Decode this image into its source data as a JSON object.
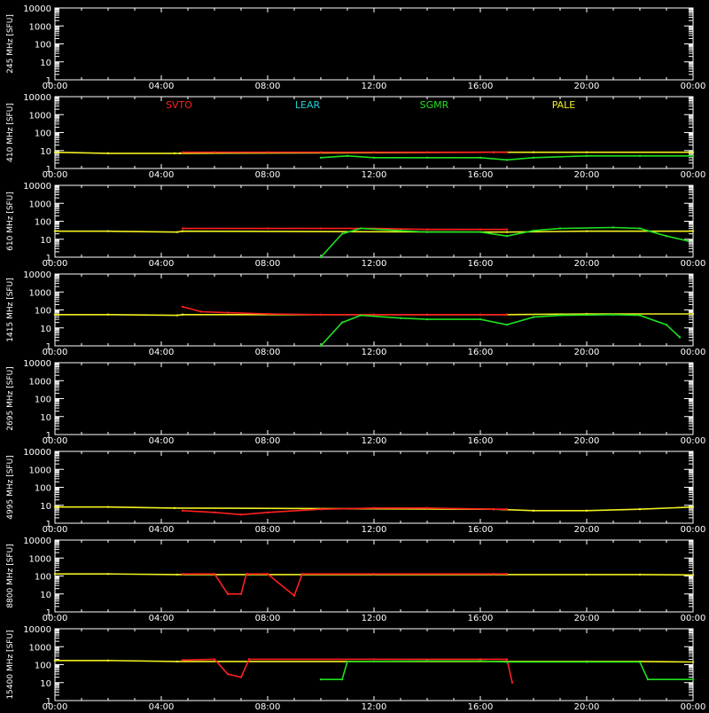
{
  "chart_data": {
    "type": "line",
    "x_ticks": [
      "00:00",
      "04:00",
      "08:00",
      "12:00",
      "16:00",
      "20:00",
      "00:00"
    ],
    "x_range_hours": [
      0,
      24
    ],
    "y_scale": "log",
    "y_ticks": [
      "10000",
      "1000",
      "100",
      "10",
      "1"
    ],
    "ylim": [
      1,
      10000
    ],
    "legend": [
      {
        "name": "SVTO",
        "color": "#ff2020"
      },
      {
        "name": "LEAR",
        "color": "#20d0d0"
      },
      {
        "name": "SGMR",
        "color": "#20e020"
      },
      {
        "name": "PALE",
        "color": "#f0f020"
      }
    ],
    "panels": [
      {
        "ylabel": "245 MHz [SFU]",
        "series": []
      },
      {
        "ylabel": "410 MHz [SFU]",
        "series": [
          {
            "name": "PALE",
            "points": [
              [
                0,
                8
              ],
              [
                2,
                7
              ],
              [
                4.5,
                7
              ],
              [
                4.7,
                7
              ],
              [
                16.5,
                8
              ],
              [
                18,
                8
              ],
              [
                20,
                8
              ],
              [
                24,
                8
              ]
            ]
          },
          {
            "name": "SVTO",
            "points": [
              [
                4.8,
                8
              ],
              [
                6,
                8
              ],
              [
                8,
                8
              ],
              [
                10,
                8
              ],
              [
                12,
                8
              ],
              [
                14,
                8
              ],
              [
                16.5,
                8
              ],
              [
                17,
                8
              ]
            ]
          },
          {
            "name": "SGMR",
            "points": [
              [
                10,
                4
              ],
              [
                11,
                5
              ],
              [
                12,
                4
              ],
              [
                14,
                4
              ],
              [
                16,
                4
              ],
              [
                17,
                3
              ],
              [
                18,
                4
              ],
              [
                20,
                5
              ],
              [
                22,
                5
              ],
              [
                24,
                5
              ]
            ]
          }
        ]
      },
      {
        "ylabel": "610 MHz [SFU]",
        "series": [
          {
            "name": "PALE",
            "points": [
              [
                0,
                28
              ],
              [
                2,
                28
              ],
              [
                4.6,
                25
              ],
              [
                4.8,
                28
              ],
              [
                17,
                25
              ],
              [
                20,
                28
              ],
              [
                24,
                28
              ]
            ]
          },
          {
            "name": "SVTO",
            "points": [
              [
                4.8,
                40
              ],
              [
                8,
                40
              ],
              [
                10,
                40
              ],
              [
                12,
                40
              ],
              [
                14,
                35
              ],
              [
                16,
                35
              ],
              [
                17,
                35
              ]
            ]
          },
          {
            "name": "SGMR",
            "points": [
              [
                10,
                1
              ],
              [
                10.8,
                20
              ],
              [
                11.5,
                40
              ],
              [
                13,
                30
              ],
              [
                14,
                25
              ],
              [
                16,
                25
              ],
              [
                17,
                15
              ],
              [
                18,
                30
              ],
              [
                19,
                40
              ],
              [
                21,
                45
              ],
              [
                22,
                40
              ],
              [
                23,
                15
              ],
              [
                23.8,
                8
              ]
            ]
          }
        ]
      },
      {
        "ylabel": "1415 MHz [SFU]",
        "series": [
          {
            "name": "PALE",
            "points": [
              [
                0,
                55
              ],
              [
                2,
                55
              ],
              [
                4.6,
                50
              ],
              [
                4.8,
                55
              ],
              [
                17,
                55
              ],
              [
                20,
                60
              ],
              [
                24,
                60
              ]
            ]
          },
          {
            "name": "SVTO",
            "points": [
              [
                4.8,
                150
              ],
              [
                5.5,
                80
              ],
              [
                6.5,
                70
              ],
              [
                8,
                60
              ],
              [
                10,
                55
              ],
              [
                12,
                55
              ],
              [
                14,
                55
              ],
              [
                16,
                55
              ],
              [
                17,
                55
              ]
            ]
          },
          {
            "name": "SGMR",
            "points": [
              [
                10,
                1
              ],
              [
                10.8,
                20
              ],
              [
                11.5,
                50
              ],
              [
                13,
                35
              ],
              [
                14,
                30
              ],
              [
                16,
                30
              ],
              [
                17,
                15
              ],
              [
                18,
                40
              ],
              [
                19,
                50
              ],
              [
                21,
                55
              ],
              [
                22,
                50
              ],
              [
                23,
                15
              ],
              [
                23.5,
                3
              ]
            ]
          }
        ]
      },
      {
        "ylabel": "2695 MHz [SFU]",
        "series": []
      },
      {
        "ylabel": "4995 MHz [SFU]",
        "series": [
          {
            "name": "PALE",
            "points": [
              [
                0,
                8
              ],
              [
                2,
                8
              ],
              [
                4.5,
                7
              ],
              [
                16.5,
                6
              ],
              [
                18,
                5
              ],
              [
                20,
                5
              ],
              [
                22,
                6
              ],
              [
                24,
                8
              ]
            ]
          },
          {
            "name": "SVTO",
            "points": [
              [
                4.8,
                5
              ],
              [
                6,
                4
              ],
              [
                7,
                3
              ],
              [
                8,
                4
              ],
              [
                10,
                6
              ],
              [
                12,
                7
              ],
              [
                14,
                7
              ],
              [
                16.5,
                6
              ],
              [
                17,
                6
              ]
            ]
          }
        ]
      },
      {
        "ylabel": "8800 MHz [SFU]",
        "series": [
          {
            "name": "PALE",
            "points": [
              [
                0,
                130
              ],
              [
                2,
                130
              ],
              [
                4.6,
                120
              ],
              [
                17,
                120
              ],
              [
                20,
                120
              ],
              [
                22,
                120
              ],
              [
                24,
                115
              ]
            ]
          },
          {
            "name": "SVTO",
            "points": [
              [
                4.8,
                130
              ],
              [
                6,
                130
              ],
              [
                6.5,
                10
              ],
              [
                7,
                10
              ],
              [
                7.2,
                130
              ],
              [
                8,
                130
              ],
              [
                9,
                8
              ],
              [
                9.3,
                130
              ],
              [
                12,
                130
              ],
              [
                16.5,
                130
              ],
              [
                17,
                130
              ]
            ]
          }
        ]
      },
      {
        "ylabel": "15400 MHz [SFU]",
        "series": [
          {
            "name": "PALE",
            "points": [
              [
                0,
                170
              ],
              [
                2,
                170
              ],
              [
                4.6,
                150
              ],
              [
                17,
                150
              ],
              [
                20,
                150
              ],
              [
                22,
                150
              ],
              [
                24,
                140
              ]
            ]
          },
          {
            "name": "SVTO",
            "points": [
              [
                4.8,
                180
              ],
              [
                6,
                200
              ],
              [
                6.5,
                30
              ],
              [
                7,
                20
              ],
              [
                7.3,
                200
              ],
              [
                12,
                200
              ],
              [
                16,
                200
              ],
              [
                17,
                200
              ],
              [
                17.2,
                10
              ]
            ]
          },
          {
            "name": "SGMR",
            "points": [
              [
                10,
                15
              ],
              [
                10.8,
                15
              ],
              [
                11,
                150
              ],
              [
                14,
                160
              ],
              [
                16,
                160
              ],
              [
                17,
                140
              ],
              [
                20,
                140
              ],
              [
                22,
                140
              ],
              [
                22.3,
                15
              ],
              [
                24,
                15
              ]
            ]
          }
        ]
      }
    ]
  }
}
